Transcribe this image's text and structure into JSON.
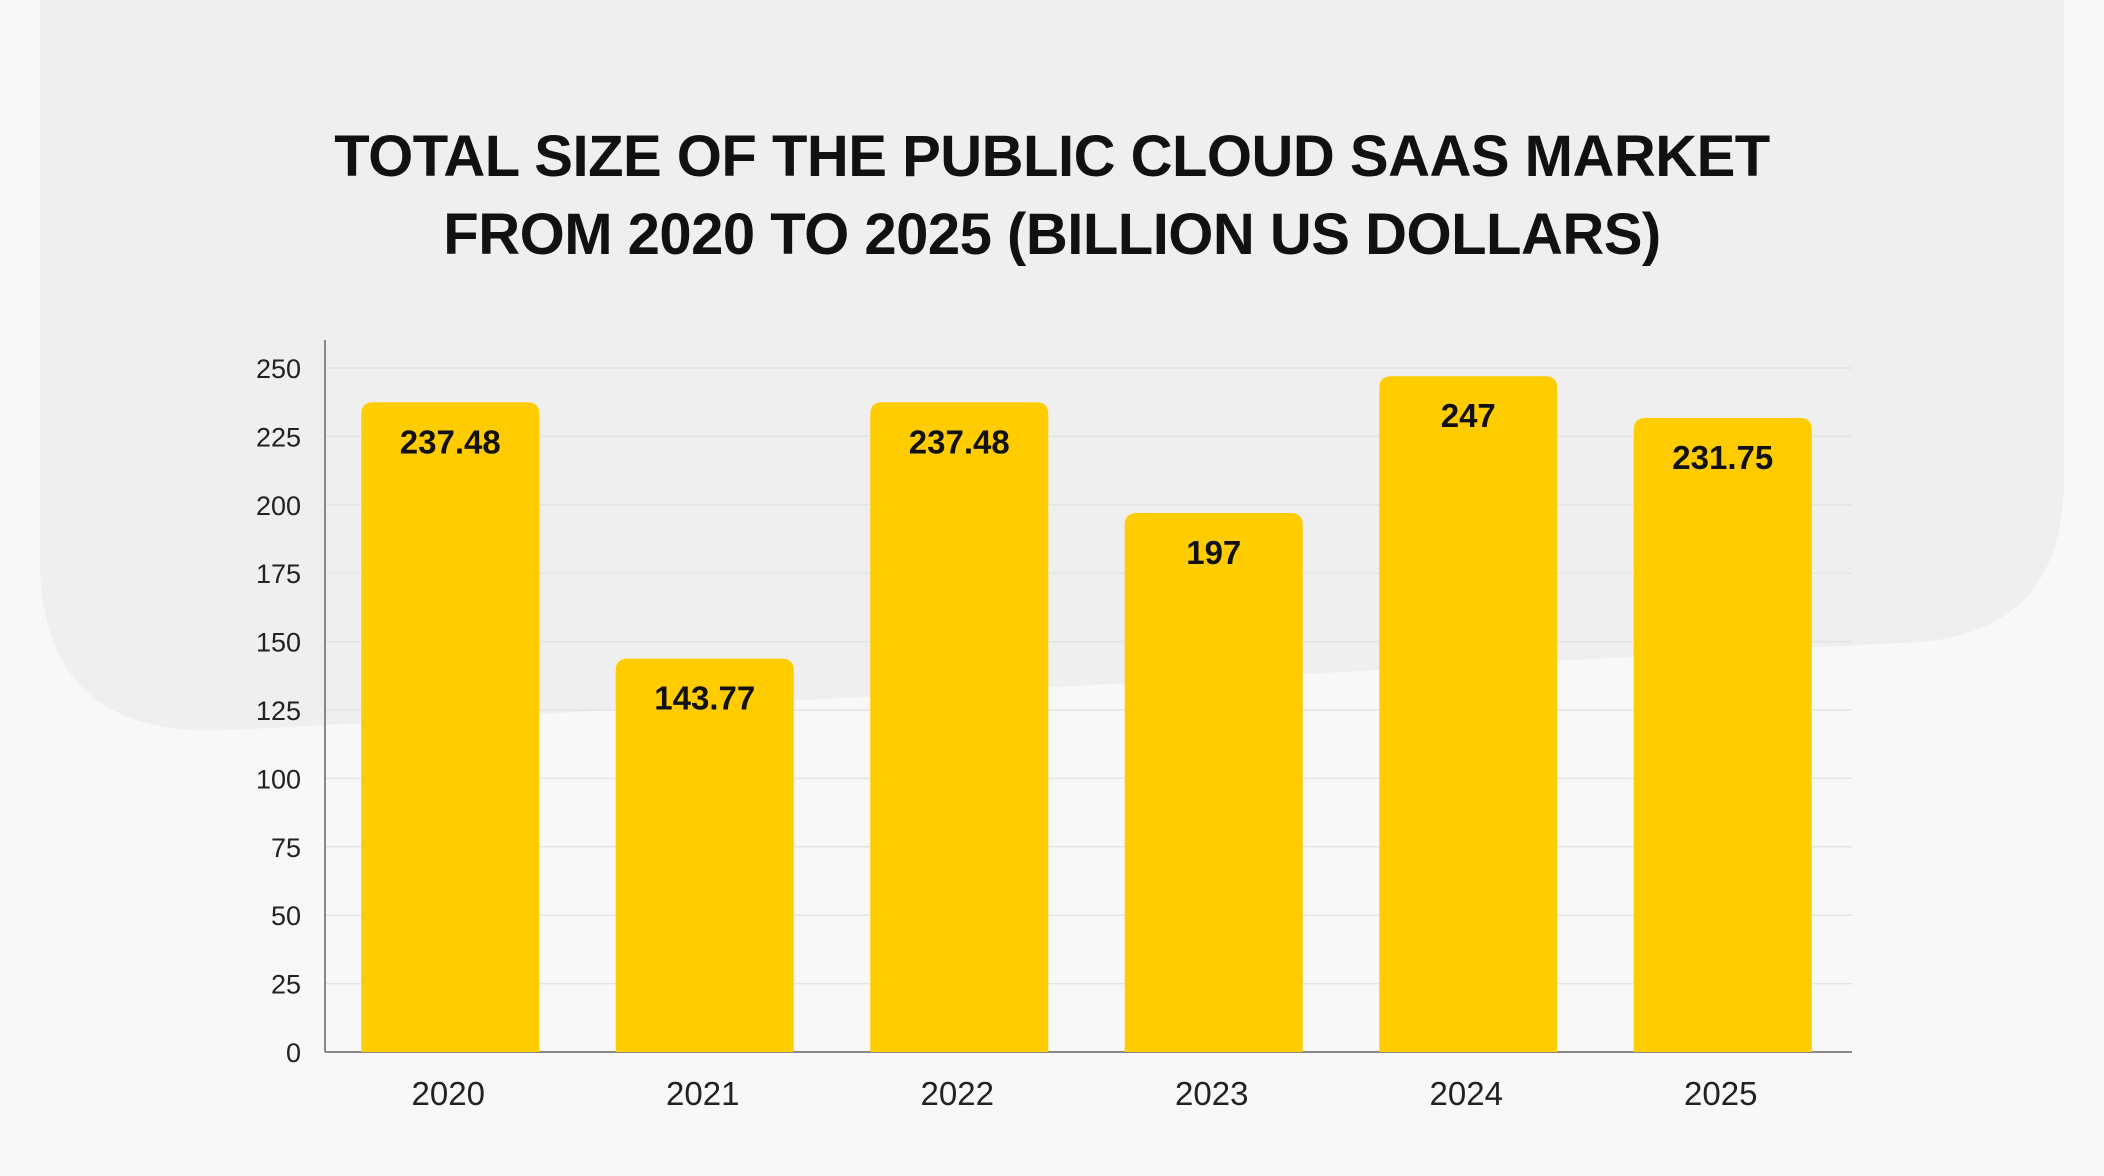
{
  "title_lines": [
    "TOTAL SIZE OF THE PUBLIC CLOUD SAAS MARKET",
    "FROM 2020 TO 2025 (BILLION US DOLLARS)"
  ],
  "colors": {
    "background": "#f8f8f8",
    "backdrop_shape": "#efefef",
    "bar": "#ffcc00",
    "gridline": "#e4e4e4",
    "axis": "#888888",
    "text": "#111111"
  },
  "chart_data": {
    "type": "bar",
    "title": "TOTAL SIZE OF THE PUBLIC CLOUD SAAS MARKET FROM 2020 TO 2025 (BILLION US DOLLARS)",
    "xlabel": "",
    "ylabel": "",
    "categories": [
      "2020",
      "2021",
      "2022",
      "2023",
      "2024",
      "2025"
    ],
    "values": [
      237.48,
      143.77,
      237.48,
      197,
      247,
      231.75
    ],
    "data_labels": [
      "237.48",
      "143.77",
      "237.48",
      "197",
      "247",
      "231.75"
    ],
    "ylim": [
      0,
      250
    ],
    "yticks": [
      "0",
      "25",
      "50",
      "75",
      "100",
      "125",
      "150",
      "175",
      "200",
      "225",
      "250"
    ],
    "grid": true,
    "legend": "none"
  }
}
